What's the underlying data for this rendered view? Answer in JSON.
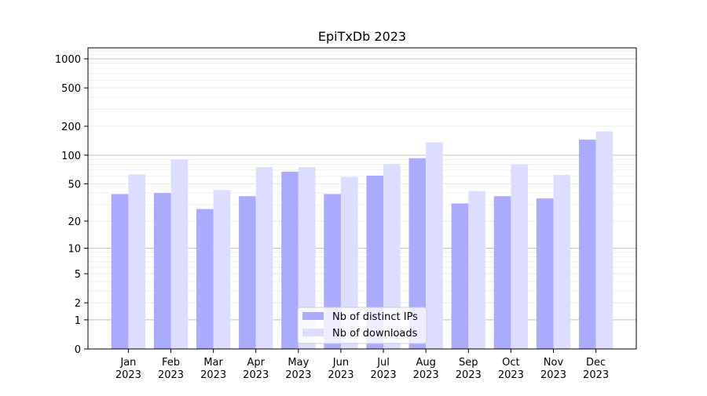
{
  "chart_data": {
    "type": "bar",
    "title": "EpiTxDb 2023",
    "xlabel": "",
    "ylabel": "",
    "yscale": "log1p",
    "ylim": [
      0,
      1300
    ],
    "yticks": [
      0,
      1,
      2,
      5,
      10,
      20,
      50,
      100,
      200,
      500,
      1000
    ],
    "ytick_labels": [
      "0",
      "1",
      "2",
      "5",
      "10",
      "20",
      "50",
      "100",
      "200",
      "500",
      "1000"
    ],
    "grid": true,
    "legend_position": "bottom-center",
    "categories": [
      [
        "Jan",
        "2023"
      ],
      [
        "Feb",
        "2023"
      ],
      [
        "Mar",
        "2023"
      ],
      [
        "Apr",
        "2023"
      ],
      [
        "May",
        "2023"
      ],
      [
        "Jun",
        "2023"
      ],
      [
        "Jul",
        "2023"
      ],
      [
        "Aug",
        "2023"
      ],
      [
        "Sep",
        "2023"
      ],
      [
        "Oct",
        "2023"
      ],
      [
        "Nov",
        "2023"
      ],
      [
        "Dec",
        "2023"
      ]
    ],
    "series": [
      {
        "name": "Nb of distinct IPs",
        "color": "#aaaaff",
        "values": [
          39,
          40,
          27,
          37,
          67,
          39,
          61,
          93,
          31,
          37,
          35,
          145
        ]
      },
      {
        "name": "Nb of downloads",
        "color": "#ddddff",
        "values": [
          63,
          90,
          43,
          75,
          75,
          59,
          81,
          136,
          42,
          80,
          62,
          177
        ]
      }
    ]
  }
}
